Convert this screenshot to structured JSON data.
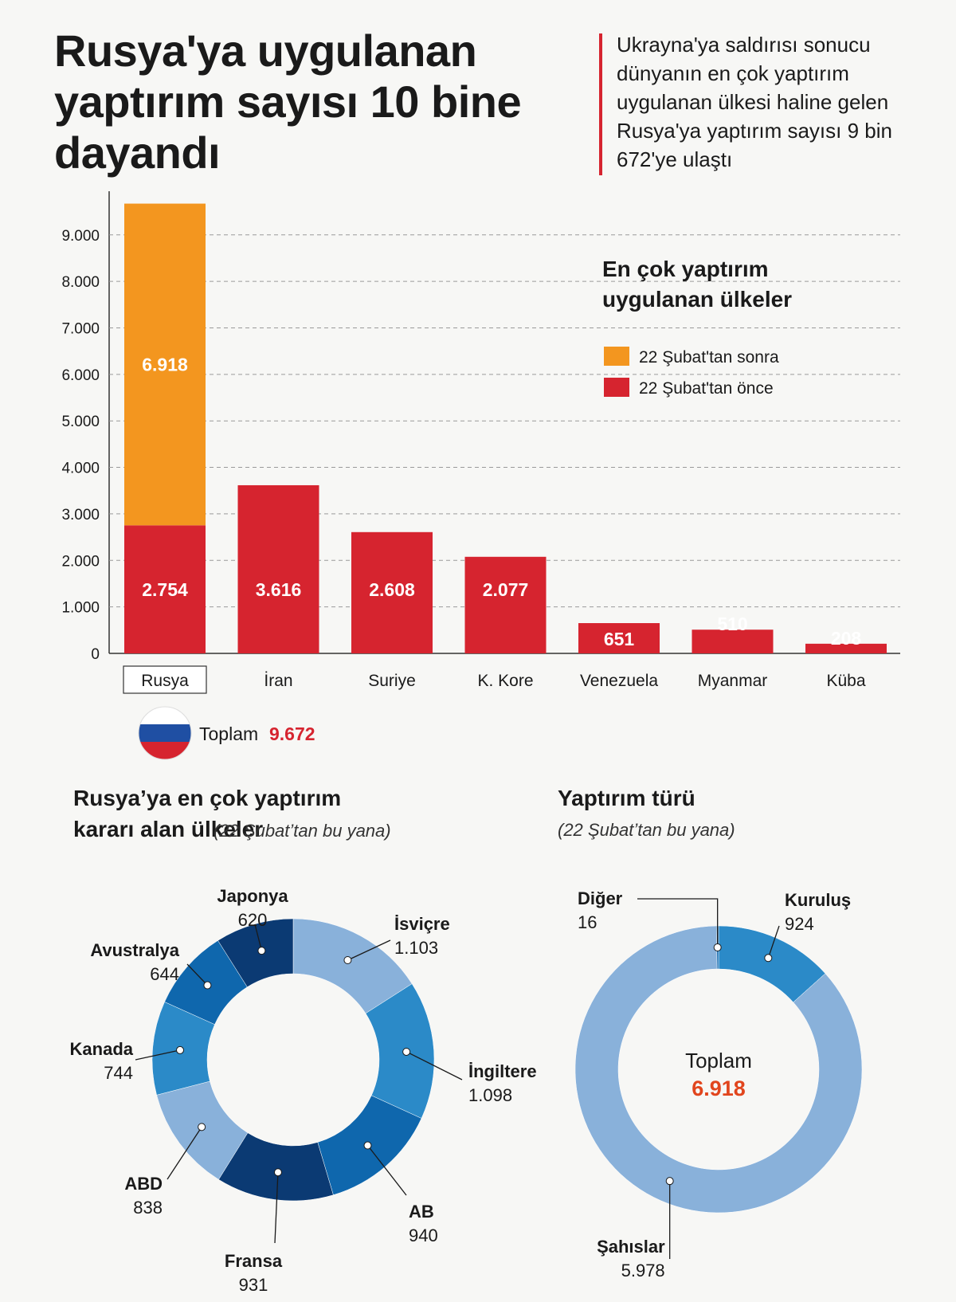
{
  "header": {
    "title": "Rusya'ya uygulanan yaptırım sayısı 10 bine dayandı",
    "subtitle": "Ukrayna'ya saldırısı sonucu dünyanın en çok yaptırım uygulanan ülkesi haline gelen Rusya'ya yaptırım sayısı 9 bin 672'ye ulaştı"
  },
  "colors": {
    "after": "#f3961f",
    "before": "#d6242f",
    "accent_red": "#d6242f",
    "light_blue": "#89b1da",
    "mid_blue": "#2b8ac8",
    "blue": "#0f67ad",
    "dark_blue": "#0b3a73",
    "center_orange": "#e1451d"
  },
  "chart_data": [
    {
      "type": "bar",
      "stacked": true,
      "title": "En çok yaptırım uygulanan ülkeler",
      "categories": [
        "Rusya",
        "İran",
        "Suriye",
        "K. Kore",
        "Venezuela",
        "Myanmar",
        "Küba"
      ],
      "series": [
        {
          "name": "22 Şubat'tan önce",
          "values": [
            2754,
            3616,
            2608,
            2077,
            651,
            510,
            208
          ]
        },
        {
          "name": "22 Şubat'tan sonra",
          "values": [
            6918,
            0,
            0,
            0,
            0,
            0,
            0
          ]
        }
      ],
      "yticks": [
        "0",
        "1.000",
        "2.000",
        "3.000",
        "4.000",
        "5.000",
        "6.000",
        "7.000",
        "8.000",
        "9.000"
      ],
      "ylim": [
        0,
        10000
      ],
      "grid": true,
      "legend_position": "top-right",
      "highlighted_category": "Rusya",
      "bar_labels": [
        "6.918",
        "2.754",
        "3.616",
        "2.608",
        "2.077",
        "651",
        "510",
        "208"
      ],
      "total_label": "Toplam",
      "total_value": "9.672"
    },
    {
      "type": "pie",
      "donut": true,
      "title": "Rusya’ya en çok yaptırım kararı alan ülkeler",
      "note": "(22 Şubat’tan bu yana)",
      "slices": [
        {
          "name": "İsviçre",
          "value": 1103,
          "label": "1.103",
          "color": "light_blue"
        },
        {
          "name": "İngiltere",
          "value": 1098,
          "label": "1.098",
          "color": "mid_blue"
        },
        {
          "name": "AB",
          "value": 940,
          "label": "940",
          "color": "blue"
        },
        {
          "name": "Fransa",
          "value": 931,
          "label": "931",
          "color": "dark_blue"
        },
        {
          "name": "ABD",
          "value": 838,
          "label": "838",
          "color": "light_blue"
        },
        {
          "name": "Kanada",
          "value": 744,
          "label": "744",
          "color": "mid_blue"
        },
        {
          "name": "Avustralya",
          "value": 644,
          "label": "644",
          "color": "blue"
        },
        {
          "name": "Japonya",
          "value": 620,
          "label": "620",
          "color": "dark_blue"
        }
      ]
    },
    {
      "type": "pie",
      "donut": true,
      "title": "Yaptırım türü",
      "note": "(22 Şubat’tan bu yana)",
      "center_label": "Toplam",
      "center_value": "6.918",
      "slices": [
        {
          "name": "Kuruluş",
          "value": 924,
          "label": "924",
          "color": "mid_blue"
        },
        {
          "name": "Şahıslar",
          "value": 5978,
          "label": "5.978",
          "color": "light_blue"
        },
        {
          "name": "Diğer",
          "value": 16,
          "label": "16",
          "color": "blue"
        }
      ]
    }
  ]
}
